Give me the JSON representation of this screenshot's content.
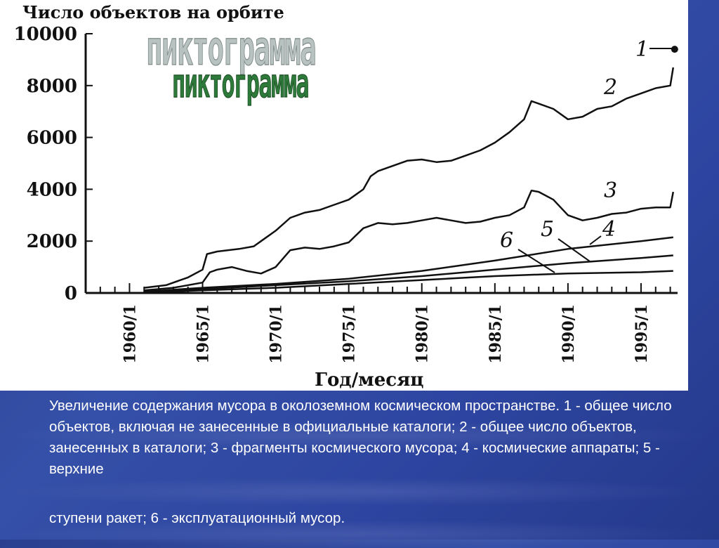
{
  "caption": {
    "line1": "Увеличение содержания мусора в околоземном космическом пространстве. 1 - общее число объектов, включая не занесенные в официальные каталоги; 2 - общее число объектов, занесенных в каталоги; 3 - фрагменты космического мусора; 4 - космические аппараты; 5 - верхние",
    "line2": "ступени ракет; 6 - эксплуатационный мусор."
  },
  "wordart": [
    "пиктограмма",
    "пиктограмма"
  ],
  "colors": {
    "background": "#2d45a0",
    "panel": "#ffffff",
    "line": "#111111"
  },
  "chart_data": {
    "type": "line",
    "title": "Число объектов на орбите",
    "xlabel": "Год/месяц",
    "ylabel": "",
    "ylim": [
      0,
      10000
    ],
    "xlim": [
      1957,
      1997.5
    ],
    "yticks": [
      "0",
      "2000",
      "4000",
      "6000",
      "8000",
      "10000"
    ],
    "xticks": [
      "1960/1",
      "1965/1",
      "1970/1",
      "1975/1",
      "1980/1",
      "1985/1",
      "1990/1",
      "1995/1"
    ],
    "xtick_years": [
      1960,
      1965,
      1970,
      1975,
      1980,
      1985,
      1990,
      1995
    ],
    "grid": false,
    "series": [
      {
        "name": "1",
        "x": [
          1997.3
        ],
        "y": [
          9400
        ]
      },
      {
        "name": "2",
        "x": [
          1961,
          1962.5,
          1964,
          1965,
          1965.3,
          1966,
          1967.5,
          1968.5,
          1969,
          1970,
          1971,
          1972,
          1973,
          1974,
          1975,
          1976,
          1976.5,
          1977,
          1978,
          1979,
          1980,
          1981,
          1982,
          1983,
          1984,
          1985,
          1986,
          1987,
          1987.5,
          1988,
          1989,
          1990,
          1991,
          1992,
          1993,
          1994,
          1995,
          1996,
          1997,
          1997.2
        ],
        "y": [
          200,
          300,
          600,
          900,
          1500,
          1600,
          1700,
          1800,
          2000,
          2400,
          2900,
          3100,
          3200,
          3400,
          3600,
          4000,
          4500,
          4700,
          4900,
          5100,
          5150,
          5050,
          5100,
          5300,
          5500,
          5800,
          6200,
          6700,
          7400,
          7300,
          7100,
          6700,
          6800,
          7100,
          7200,
          7500,
          7700,
          7900,
          8000,
          8700
        ]
      },
      {
        "name": "3",
        "x": [
          1961,
          1963,
          1965,
          1965.5,
          1966,
          1967,
          1968,
          1969,
          1970,
          1971,
          1972,
          1973,
          1974,
          1975,
          1976,
          1977,
          1978,
          1979,
          1980,
          1981,
          1982,
          1983,
          1984,
          1985,
          1986,
          1987,
          1987.5,
          1988,
          1989,
          1990,
          1991,
          1992,
          1993,
          1994,
          1995,
          1996,
          1997,
          1997.2
        ],
        "y": [
          100,
          200,
          400,
          800,
          900,
          1000,
          850,
          750,
          1000,
          1650,
          1750,
          1700,
          1800,
          1950,
          2500,
          2700,
          2650,
          2700,
          2800,
          2900,
          2800,
          2700,
          2750,
          2900,
          3000,
          3300,
          3950,
          3900,
          3600,
          3000,
          2800,
          2900,
          3050,
          3100,
          3250,
          3300,
          3300,
          3900
        ]
      },
      {
        "name": "4",
        "x": [
          1961,
          1965,
          1970,
          1975,
          1980,
          1985,
          1990,
          1995,
          1997.2
        ],
        "y": [
          50,
          200,
          350,
          550,
          850,
          1250,
          1700,
          2000,
          2150
        ]
      },
      {
        "name": "5",
        "x": [
          1961,
          1965,
          1970,
          1975,
          1980,
          1985,
          1990,
          1995,
          1997.2
        ],
        "y": [
          50,
          150,
          300,
          450,
          650,
          900,
          1150,
          1350,
          1450
        ]
      },
      {
        "name": "6",
        "x": [
          1961,
          1965,
          1970,
          1975,
          1980,
          1985,
          1990,
          1995,
          1997.2
        ],
        "y": [
          20,
          100,
          200,
          350,
          500,
          650,
          750,
          800,
          850
        ]
      }
    ],
    "labels": [
      {
        "text": "1",
        "series": "1"
      },
      {
        "text": "2",
        "series": "2"
      },
      {
        "text": "3",
        "series": "3"
      },
      {
        "text": "4",
        "series": "4"
      },
      {
        "text": "5",
        "series": "5"
      },
      {
        "text": "6",
        "series": "6"
      }
    ]
  }
}
